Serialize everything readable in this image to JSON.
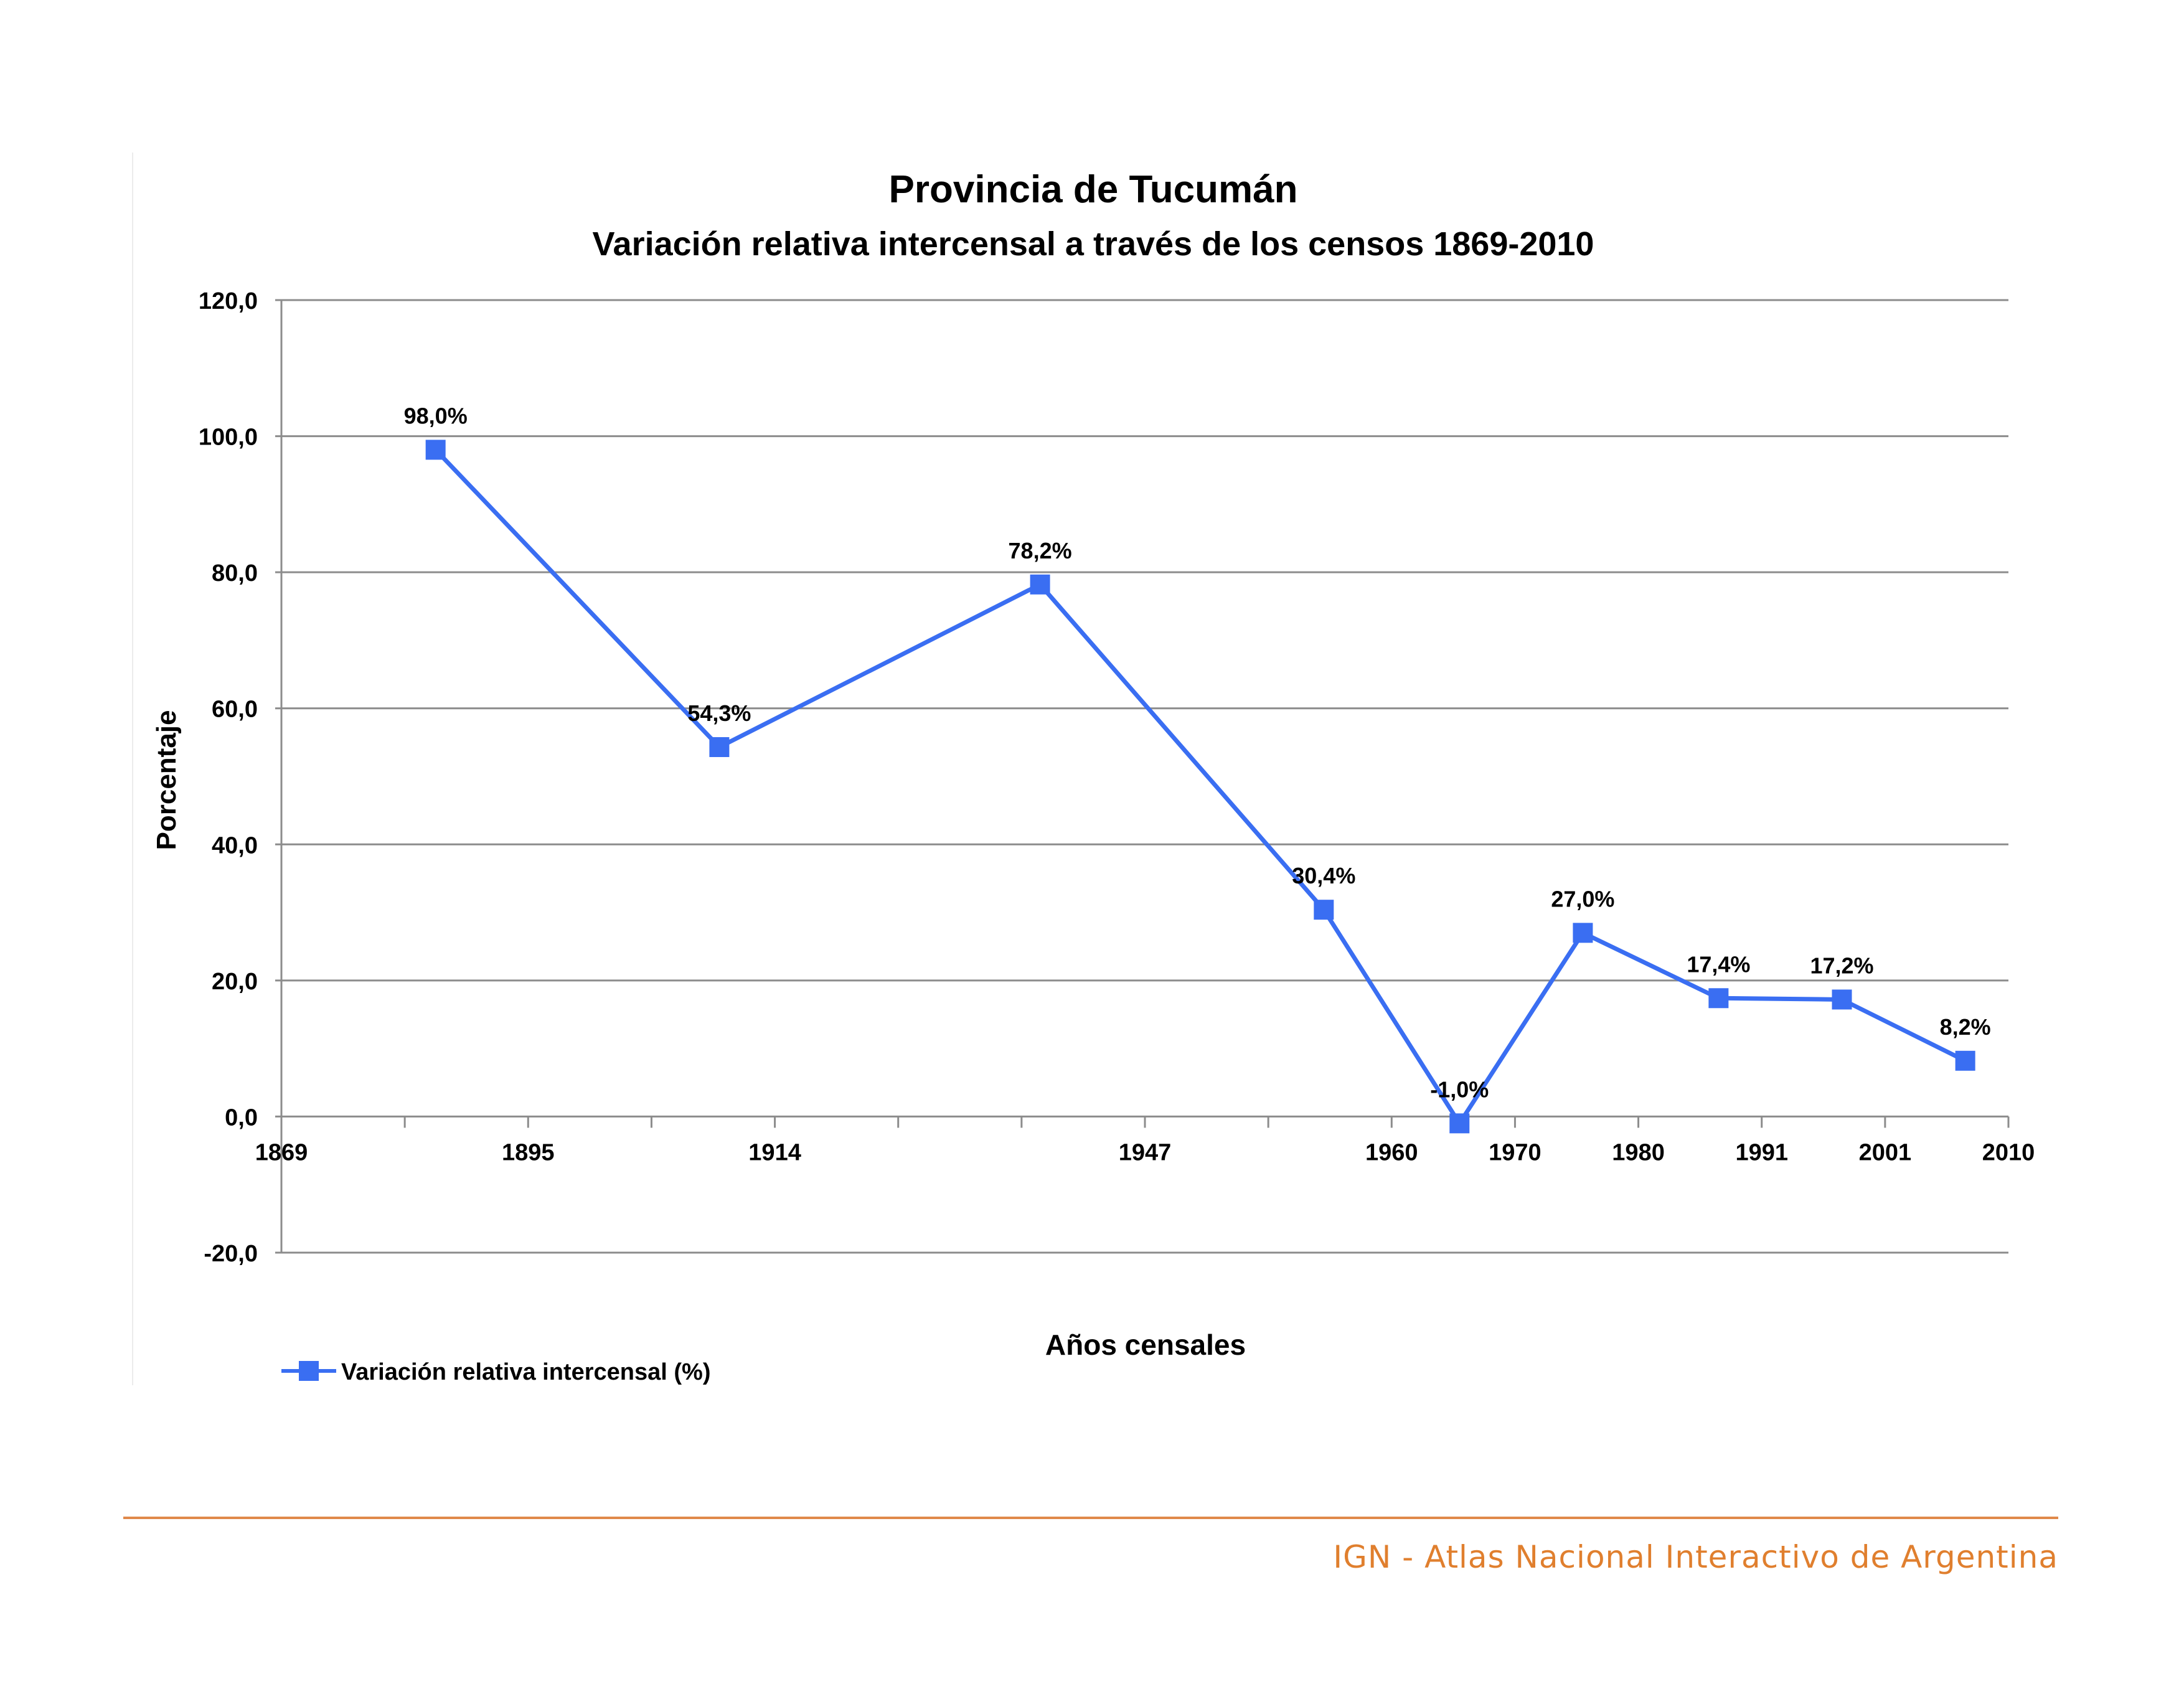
{
  "chart_data": {
    "type": "line",
    "title": "Provincia de Tucumán",
    "subtitle": "Variación relativa intercensal a través de los censos 1869-2010",
    "xlabel": "Años censales",
    "ylabel": "Porcentaje",
    "ylim": [
      -20,
      120
    ],
    "y_ticks": [
      "-20,0",
      "0,0",
      "20,0",
      "40,0",
      "60,0",
      "80,0",
      "100,0",
      "120,0"
    ],
    "y_tick_values": [
      -20,
      0,
      20,
      40,
      60,
      80,
      100,
      120
    ],
    "x_tick_labels": [
      "1869",
      "1895",
      "1914",
      "1947",
      "1960",
      "1970",
      "1980",
      "1991",
      "2001",
      "2010"
    ],
    "x_tick_slots": [
      0,
      2,
      4,
      7,
      9,
      10,
      11,
      12,
      13,
      14
    ],
    "slot_count": 14,
    "point_slots": [
      1.25,
      3.55,
      6.15,
      8.45,
      9.55,
      10.55,
      11.65,
      12.65,
      13.65
    ],
    "values": [
      98.0,
      54.3,
      78.2,
      30.4,
      -1.0,
      27.0,
      17.4,
      17.2,
      8.2
    ],
    "labels": [
      "98,0%",
      "54,3%",
      "78,2%",
      "30,4%",
      "-1,0%",
      "27,0%",
      "17,4%",
      "17,2%",
      "8,2%"
    ],
    "grid": true,
    "legend_position": "bottom-left",
    "series": [
      {
        "name": "Variación relativa intercensal (%)",
        "color": "#3a6ef2"
      }
    ]
  },
  "footer": {
    "text": "IGN - Atlas Nacional Interactivo de Argentina",
    "color": "#e07f2e"
  }
}
